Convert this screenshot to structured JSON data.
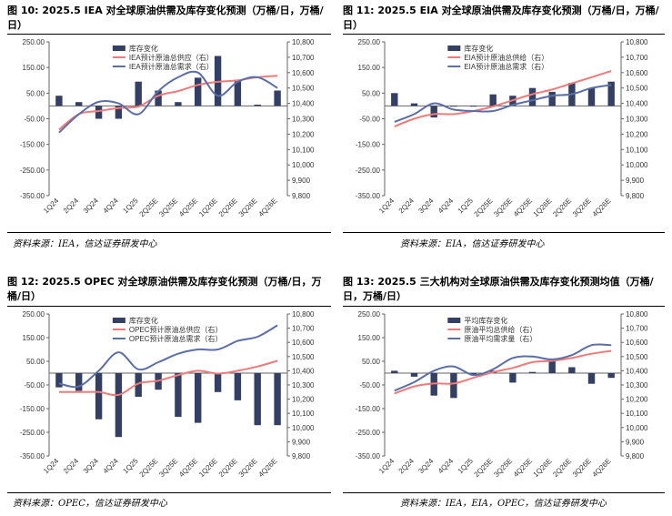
{
  "colors": {
    "bar": "#333f63",
    "supply": "#f07a7a",
    "demand": "#5a6ea8",
    "axis": "#666666"
  },
  "panels": [
    {
      "title_num": "图 10:",
      "title_text": "2025.5 IEA 对全球原油供需及库存变化预测（万桶/日，万桶/日）",
      "source": "资料来源：IEA，信达证券研发中心",
      "chart_data": {
        "type": "bar",
        "categories": [
          "1Q24",
          "2Q24",
          "3Q24",
          "4Q24",
          "1Q25",
          "2Q25E",
          "3Q25E",
          "4Q25E",
          "1Q26E",
          "2Q26E",
          "3Q26E",
          "4Q26E"
        ],
        "left_axis": {
          "min": -350,
          "max": 250,
          "ticks": [
            "250.00",
            "150.00",
            "50.00",
            "-50.00",
            "-150.00",
            "-250.00",
            "-350.00"
          ]
        },
        "right_axis": {
          "min": 9800,
          "max": 10800,
          "ticks": [
            "10,800",
            "10,700",
            "10,600",
            "10,500",
            "10,400",
            "10,300",
            "10,200",
            "10,100",
            "10,000",
            "9,900",
            "9,800"
          ]
        },
        "series": [
          {
            "name": "库存变化",
            "kind": "bar",
            "axis": "left",
            "values": [
              40,
              15,
              -50,
              -50,
              95,
              60,
              15,
              110,
              195,
              100,
              5,
              60
            ]
          },
          {
            "name": "IEA预计原油总供应（右）",
            "kind": "line",
            "axis": "right",
            "values": [
              10230,
              10330,
              10350,
              10370,
              10380,
              10450,
              10480,
              10520,
              10540,
              10550,
              10570,
              10580
            ]
          },
          {
            "name": "IEA预计原油总需求（右）",
            "kind": "line",
            "axis": "right",
            "values": [
              10210,
              10330,
              10410,
              10400,
              10330,
              10480,
              10570,
              10600,
              10450,
              10540,
              10570,
              10500
            ]
          }
        ]
      }
    },
    {
      "title_num": "图 11:",
      "title_text": "2025.5 EIA 对全球原油供需及库存变化预测（万桶/日，万桶/日）",
      "source": "资料来源：EIA，信达证券研发中心",
      "chart_data": {
        "type": "bar",
        "categories": [
          "1Q24",
          "2Q24",
          "3Q24",
          "4Q24",
          "1Q25",
          "2Q25E",
          "3Q25E",
          "4Q25E",
          "1Q26E",
          "2Q26E",
          "3Q26E",
          "4Q26E"
        ],
        "left_axis": {
          "min": -350,
          "max": 250,
          "ticks": [
            "250.00",
            "150.00",
            "50.00",
            "-50.00",
            "-150.00",
            "-250.00",
            "-350.00"
          ]
        },
        "right_axis": {
          "min": 9800,
          "max": 10800,
          "ticks": [
            "10,800",
            "10,700",
            "10,600",
            "10,500",
            "10,400",
            "10,300",
            "10,200",
            "10,100",
            "10,000",
            "9,900",
            "9,800"
          ]
        },
        "series": [
          {
            "name": "库存变化",
            "kind": "bar",
            "axis": "left",
            "values": [
              50,
              10,
              -45,
              0,
              0,
              45,
              40,
              70,
              55,
              90,
              70,
              95
            ]
          },
          {
            "name": "EIA预计原油总供给（右）",
            "kind": "line",
            "axis": "right",
            "values": [
              10250,
              10300,
              10330,
              10330,
              10350,
              10380,
              10420,
              10460,
              10490,
              10530,
              10570,
              10610
            ]
          },
          {
            "name": "EIA预计原油总需求（右）",
            "kind": "line",
            "axis": "right",
            "values": [
              10280,
              10330,
              10400,
              10360,
              10350,
              10350,
              10390,
              10420,
              10450,
              10460,
              10500,
              10520
            ]
          }
        ]
      }
    },
    {
      "title_num": "图 12:",
      "title_text": "2025.5 OPEC 对全球原油供需及库存变化预测（万桶/日，万桶/日）",
      "source": "资料来源：OPEC，信达证券研发中心",
      "chart_data": {
        "type": "bar",
        "categories": [
          "1Q24",
          "2Q24",
          "3Q24",
          "4Q24",
          "1Q25",
          "2Q25E",
          "3Q25E",
          "4Q25E",
          "1Q26E",
          "2Q26E",
          "3Q26E",
          "4Q26E"
        ],
        "left_axis": {
          "min": -350,
          "max": 250,
          "ticks": [
            "250.00",
            "150.00",
            "50.00",
            "-50.00",
            "-150.00",
            "-250.00",
            "-350.00"
          ]
        },
        "right_axis": {
          "min": 9800,
          "max": 10800,
          "ticks": [
            "10,800",
            "10,700",
            "10,600",
            "10,500",
            "10,400",
            "10,300",
            "10,200",
            "10,100",
            "10,000",
            "9,900",
            "9,800"
          ]
        },
        "series": [
          {
            "name": "库存变化",
            "kind": "bar",
            "axis": "left",
            "values": [
              -60,
              -75,
              -195,
              -270,
              -100,
              -70,
              -185,
              -210,
              -80,
              -115,
              -220,
              -220
            ]
          },
          {
            "name": "OPEC预计原油总供应（右）",
            "kind": "line",
            "axis": "right",
            "values": [
              10250,
              10250,
              10250,
              10230,
              10310,
              10330,
              10370,
              10400,
              10380,
              10400,
              10430,
              10470
            ]
          },
          {
            "name": "OPEC预计原油总需求（右）",
            "kind": "line",
            "axis": "right",
            "values": [
              10310,
              10290,
              10400,
              10530,
              10410,
              10460,
              10520,
              10550,
              10550,
              10610,
              10640,
              10720
            ]
          }
        ]
      }
    },
    {
      "title_num": "图 13:",
      "title_text": "2025.5 三大机构对全球原油供需及库存变化预测均值（万桶/日，万桶/日）",
      "source": "资料来源：IEA，EIA，OPEC，信达证券研发中心",
      "chart_data": {
        "type": "bar",
        "categories": [
          "1Q24",
          "2Q24",
          "3Q24",
          "4Q24",
          "1Q25",
          "2Q25E",
          "3Q25E",
          "4Q25E",
          "1Q26E",
          "2Q26E",
          "3Q26E",
          "4Q26E"
        ],
        "left_axis": {
          "min": -350,
          "max": 250,
          "ticks": [
            "250.00",
            "150.00",
            "50.00",
            "-50.00",
            "-150.00",
            "-250.00",
            "-350.00"
          ]
        },
        "right_axis": {
          "min": 9800,
          "max": 10800,
          "ticks": [
            "10,800",
            "10,700",
            "10,600",
            "10,500",
            "10,400",
            "10,300",
            "10,200",
            "10,100",
            "10,000",
            "9,900",
            "9,800"
          ]
        },
        "series": [
          {
            "name": "平均库存变化",
            "kind": "bar",
            "axis": "left",
            "values": [
              10,
              -15,
              -95,
              -105,
              -10,
              10,
              -40,
              5,
              55,
              25,
              -45,
              -20
            ]
          },
          {
            "name": "原油平均总供给（右）",
            "kind": "line",
            "axis": "right",
            "values": [
              10240,
              10290,
              10310,
              10310,
              10350,
              10390,
              10420,
              10460,
              10470,
              10490,
              10520,
              10540
            ]
          },
          {
            "name": "原油平均需求量（右）",
            "kind": "line",
            "axis": "right",
            "values": [
              10260,
              10320,
              10400,
              10430,
              10370,
              10410,
              10490,
              10500,
              10480,
              10510,
              10580,
              10580
            ]
          }
        ]
      }
    }
  ]
}
